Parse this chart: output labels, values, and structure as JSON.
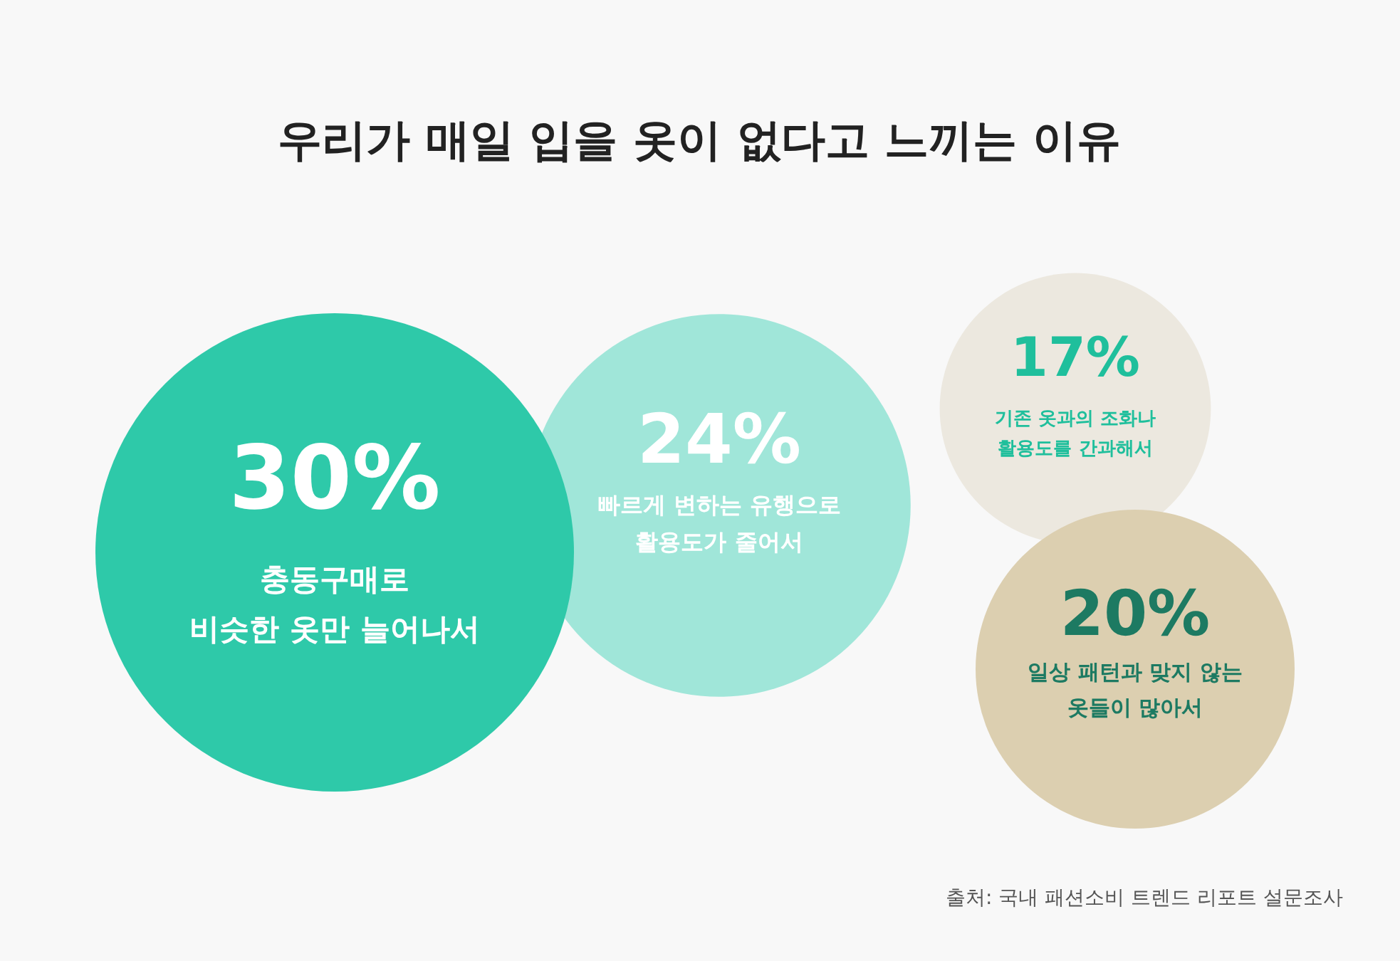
{
  "chart_data": {
    "type": "other",
    "title": "우리가 매일 입을 옷이 없다고 느끼는 이유",
    "categories": [
      "충동구매로\n비슷한 옷만 늘어나서",
      "빠르게 변하는 유행으로\n활용도가 줄어서",
      "기존 옷과의 조화나\n활용도를 간과해서",
      "일상 패턴과 맞지 않는\n옷들이 많아서"
    ],
    "values": [
      30,
      24,
      17,
      20
    ],
    "value_labels": [
      "30%",
      "24%",
      "17%",
      "20%"
    ],
    "colors": [
      "#2ec9a9",
      "#a0e6d9",
      "#ece8df",
      "#dccfb0"
    ],
    "annotations": [
      "출처: 국내 패션소비 트렌드 리포트 설문조사"
    ]
  }
}
